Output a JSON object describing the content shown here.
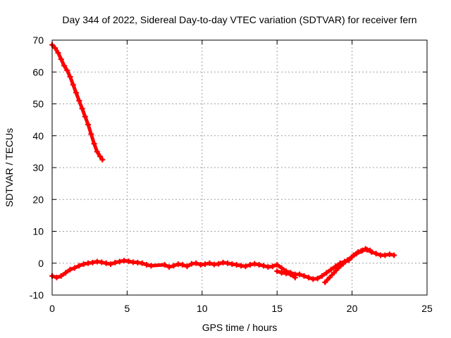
{
  "chart_data": {
    "type": "scatter",
    "title": "Day 344 of 2022, Sidereal Day-to-day VTEC variation (SDTVAR) for receiver fern",
    "xlabel": "GPS time / hours",
    "ylabel": "SDTVAR / TECUs",
    "xlim": [
      0,
      25
    ],
    "ylim": [
      -10,
      70
    ],
    "xticks": [
      "0",
      "5",
      "10",
      "15",
      "20",
      "25"
    ],
    "yticks": [
      "-10",
      "0",
      "10",
      "20",
      "30",
      "40",
      "50",
      "60",
      "70"
    ],
    "grid": true,
    "marker": "plus",
    "series": [
      {
        "name": "segment-1",
        "color": "#ff0000",
        "x": [
          0.0,
          0.2,
          0.4,
          0.6,
          0.8,
          1.0,
          1.2,
          1.4,
          1.6,
          1.8,
          2.0,
          2.2,
          2.4,
          2.6,
          2.8,
          3.0,
          3.2,
          3.35
        ],
        "y": [
          68.5,
          67.5,
          66.0,
          64.0,
          62.0,
          60.5,
          58.5,
          56.0,
          53.5,
          51.0,
          48.5,
          46.0,
          43.5,
          40.5,
          37.5,
          35.0,
          33.5,
          32.5
        ]
      },
      {
        "name": "segment-2",
        "color": "#ff0000",
        "x": [
          0.0,
          0.3,
          0.6,
          0.9,
          1.2,
          1.5,
          1.8,
          2.1,
          2.4,
          2.7,
          3.0,
          3.3,
          3.6,
          3.9,
          4.2,
          4.5,
          4.8,
          5.1,
          5.4,
          5.7,
          6.0,
          6.3,
          6.6,
          7.5,
          7.8,
          8.1,
          8.4,
          8.7,
          9.0,
          9.3,
          9.6,
          9.9,
          10.2,
          10.5,
          10.8,
          11.1,
          11.4,
          11.7,
          12.0,
          12.3,
          12.6,
          12.9,
          13.2,
          13.5,
          13.8,
          14.1,
          14.4,
          14.7,
          15.0,
          15.3,
          15.6,
          15.9,
          16.2,
          16.5,
          16.8,
          17.1,
          17.4,
          17.7,
          18.0,
          18.3,
          18.6,
          18.9,
          19.2,
          19.5,
          19.8,
          20.1,
          20.4,
          20.7,
          21.0,
          21.3,
          21.6,
          21.9,
          22.2,
          22.5,
          22.8
        ],
        "y": [
          -4.0,
          -4.5,
          -4.0,
          -3.0,
          -2.0,
          -1.5,
          -0.8,
          -0.3,
          0.0,
          0.2,
          0.5,
          0.3,
          0.0,
          -0.3,
          0.2,
          0.5,
          0.8,
          0.6,
          0.3,
          0.2,
          0.0,
          -0.5,
          -0.8,
          -0.5,
          -1.2,
          -0.8,
          -0.3,
          -0.5,
          -1.0,
          -0.2,
          0.0,
          -0.5,
          -0.3,
          0.0,
          -0.4,
          -0.2,
          0.2,
          0.0,
          -0.3,
          -0.5,
          -0.8,
          -1.0,
          -0.5,
          -0.2,
          -0.5,
          -0.8,
          -1.2,
          -1.0,
          -0.5,
          -1.5,
          -2.5,
          -3.0,
          -3.5,
          -3.5,
          -4.0,
          -4.5,
          -5.0,
          -4.8,
          -4.0,
          -3.0,
          -2.0,
          -1.0,
          0.0,
          0.5,
          1.0,
          2.5,
          3.5,
          4.0,
          4.2,
          3.5,
          3.0,
          2.5,
          2.5,
          2.8,
          2.5
        ]
      },
      {
        "name": "segment-3",
        "color": "#ff0000",
        "x": [
          15.0,
          15.3,
          15.6,
          15.9,
          16.2
        ],
        "y": [
          -2.5,
          -3.0,
          -3.2,
          -3.5,
          -4.5
        ]
      },
      {
        "name": "segment-4",
        "color": "#ff0000",
        "x": [
          18.2,
          18.5,
          18.8,
          19.1,
          19.4,
          19.7,
          20.0,
          20.3,
          20.6,
          20.9,
          21.2
        ],
        "y": [
          -6.0,
          -4.5,
          -3.0,
          -1.5,
          -0.2,
          1.0,
          2.0,
          3.0,
          3.8,
          4.5,
          4.0
        ]
      }
    ]
  }
}
